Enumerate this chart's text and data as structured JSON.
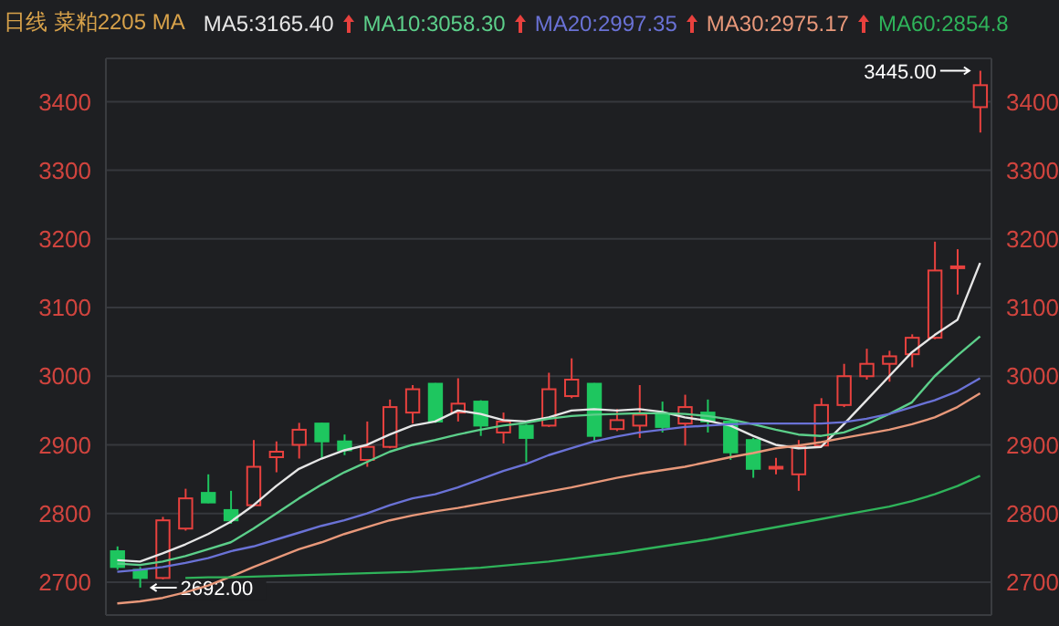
{
  "chart_data": {
    "type": "candlestick",
    "title": "日线 菜粕2205 MA",
    "categories": [
      null,
      null,
      null,
      null,
      null,
      null,
      null,
      null,
      null,
      null,
      null,
      null,
      null,
      null,
      null,
      null,
      null,
      null,
      null,
      null,
      null,
      null,
      null,
      null,
      null,
      null,
      null,
      null,
      null,
      null,
      null,
      null,
      null,
      null,
      null,
      null,
      null,
      null,
      null
    ],
    "ohlc": [
      [
        2745,
        2752,
        2718,
        2722
      ],
      [
        2718,
        2722,
        2692,
        2706
      ],
      [
        2706,
        2795,
        2704,
        2790
      ],
      [
        2778,
        2836,
        2775,
        2822
      ],
      [
        2830,
        2857,
        2815,
        2816
      ],
      [
        2805,
        2833,
        2785,
        2790
      ],
      [
        2812,
        2907,
        2810,
        2868
      ],
      [
        2882,
        2905,
        2860,
        2890
      ],
      [
        2900,
        2932,
        2880,
        2922
      ],
      [
        2931,
        2932,
        2880,
        2905
      ],
      [
        2905,
        2915,
        2885,
        2892
      ],
      [
        2878,
        2934,
        2868,
        2897
      ],
      [
        2897,
        2966,
        2895,
        2955
      ],
      [
        2947,
        2987,
        2931,
        2981
      ],
      [
        2989,
        2990,
        2932,
        2934
      ],
      [
        2947,
        2997,
        2934,
        2960
      ],
      [
        2963,
        2965,
        2913,
        2928
      ],
      [
        2918,
        2947,
        2902,
        2934
      ],
      [
        2928,
        2930,
        2875,
        2910
      ],
      [
        2928,
        3005,
        2926,
        2981
      ],
      [
        2971,
        3026,
        2968,
        2995
      ],
      [
        2989,
        2990,
        2905,
        2913
      ],
      [
        2923,
        2952,
        2920,
        2936
      ],
      [
        2928,
        2987,
        2910,
        2944
      ],
      [
        2944,
        2963,
        2918,
        2926
      ],
      [
        2931,
        2973,
        2899,
        2955
      ],
      [
        2947,
        2966,
        2918,
        2934
      ],
      [
        2934,
        2936,
        2878,
        2889
      ],
      [
        2907,
        2910,
        2852,
        2865
      ],
      [
        2866,
        2881,
        2857,
        2868
      ],
      [
        2857,
        2907,
        2833,
        2897
      ],
      [
        2899,
        2968,
        2897,
        2958
      ],
      [
        2958,
        3018,
        2955,
        3000
      ],
      [
        3000,
        3040,
        2995,
        3018
      ],
      [
        3018,
        3037,
        2992,
        3029
      ],
      [
        3032,
        3061,
        3013,
        3056
      ],
      [
        3056,
        3196,
        3054,
        3154
      ],
      [
        3158,
        3185,
        3119,
        3160
      ],
      [
        3392,
        3445,
        3355,
        3424
      ]
    ],
    "colors": [
      "#1ec65f",
      "#1ec65f",
      "#e8413e",
      "#e8413e",
      "#1ec65f",
      "#1ec65f",
      "#e8413e",
      "#e8413e",
      "#e8413e",
      "#1ec65f",
      "#1ec65f",
      "#e8413e",
      "#e8413e",
      "#e8413e",
      "#1ec65f",
      "#e8413e",
      "#1ec65f",
      "#e8413e",
      "#1ec65f",
      "#e8413e",
      "#e8413e",
      "#1ec65f",
      "#e8413e",
      "#e8413e",
      "#1ec65f",
      "#e8413e",
      "#1ec65f",
      "#1ec65f",
      "#1ec65f",
      "#e8413e",
      "#e8413e",
      "#e8413e",
      "#e8413e",
      "#e8413e",
      "#e8413e",
      "#e8413e",
      "#e8413e",
      "#e8413e",
      "#e8413e"
    ],
    "series": [
      {
        "type": "line",
        "name": "MA5:3165.40",
        "color": "#e6e6e6",
        "values": [
          2732,
          2730,
          2742,
          2755,
          2770,
          2788,
          2812,
          2840,
          2865,
          2880,
          2892,
          2900,
          2915,
          2928,
          2934,
          2950,
          2945,
          2936,
          2934,
          2940,
          2950,
          2952,
          2950,
          2952,
          2948,
          2940,
          2935,
          2928,
          2913,
          2900,
          2895,
          2897,
          2930,
          2965,
          3000,
          3035,
          3060,
          3082,
          3165
        ]
      },
      {
        "type": "line",
        "name": "MA10:3058.30",
        "color": "#5ccf8a",
        "values": [
          2727,
          2725,
          2730,
          2738,
          2748,
          2758,
          2778,
          2800,
          2822,
          2842,
          2860,
          2875,
          2890,
          2900,
          2907,
          2915,
          2922,
          2928,
          2932,
          2938,
          2942,
          2944,
          2945,
          2946,
          2946,
          2945,
          2942,
          2937,
          2930,
          2922,
          2915,
          2913,
          2918,
          2930,
          2945,
          2962,
          3000,
          3030,
          3058
        ]
      },
      {
        "type": "line",
        "name": "MA20:2997.35",
        "color": "#6a72d6",
        "values": [
          2715,
          2718,
          2722,
          2728,
          2735,
          2745,
          2752,
          2762,
          2772,
          2782,
          2790,
          2800,
          2812,
          2822,
          2828,
          2838,
          2850,
          2862,
          2872,
          2885,
          2895,
          2905,
          2912,
          2918,
          2922,
          2926,
          2928,
          2930,
          2931,
          2931,
          2931,
          2931,
          2933,
          2938,
          2945,
          2955,
          2965,
          2978,
          2997
        ]
      },
      {
        "type": "line",
        "name": "MA30:2975.17",
        "color": "#e8987a",
        "values": [
          2669,
          2672,
          2677,
          2685,
          2695,
          2708,
          2722,
          2735,
          2748,
          2758,
          2770,
          2780,
          2790,
          2797,
          2803,
          2808,
          2814,
          2820,
          2826,
          2832,
          2838,
          2845,
          2852,
          2858,
          2863,
          2868,
          2875,
          2882,
          2888,
          2895,
          2899,
          2904,
          2910,
          2916,
          2922,
          2930,
          2940,
          2955,
          2975
        ]
      },
      {
        "type": "line",
        "name": "MA60:2854.8",
        "color": "#2fb35a",
        "values": [
          null,
          null,
          null,
          2706,
          2707,
          2707,
          2708,
          2709,
          2710,
          2711,
          2712,
          2713,
          2714,
          2715,
          2717,
          2719,
          2721,
          2724,
          2727,
          2730,
          2734,
          2738,
          2742,
          2747,
          2752,
          2757,
          2762,
          2768,
          2774,
          2780,
          2786,
          2792,
          2798,
          2804,
          2810,
          2818,
          2828,
          2840,
          2855
        ]
      }
    ],
    "ylim": [
      2652,
      3463
    ],
    "yticks": [
      2700,
      2800,
      2900,
      3000,
      3100,
      3200,
      3300,
      3400
    ],
    "y2lim": [
      2652,
      3463
    ],
    "y2ticks": [
      2700,
      2800,
      2900,
      3000,
      3100,
      3200,
      3300,
      3400
    ],
    "grid": "y",
    "legend": "top",
    "tick_labels": "y",
    "annotations": [
      "3445.00",
      "2692.00"
    ]
  }
}
